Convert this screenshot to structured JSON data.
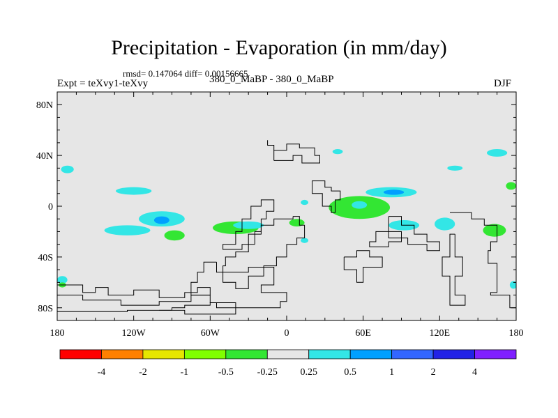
{
  "chart_data": {
    "type": "heatmap",
    "title": "Precipitation - Evaporation (in mm/day)",
    "stats": "rmsd= 0.147064 diff= 0.00156665",
    "left_label": "Expt = teXvy1-teXvy",
    "center_label": "380_0_MaBP - 380_0_MaBP",
    "right_label": "DJF",
    "x_range": [
      -180,
      180
    ],
    "y_range": [
      -90,
      90
    ],
    "x_ticks": [
      {
        "value": -180,
        "label": "180"
      },
      {
        "value": -120,
        "label": "120W"
      },
      {
        "value": -60,
        "label": "60W"
      },
      {
        "value": 0,
        "label": "0"
      },
      {
        "value": 60,
        "label": "60E"
      },
      {
        "value": 120,
        "label": "120E"
      },
      {
        "value": 180,
        "label": "180"
      }
    ],
    "y_ticks": [
      {
        "value": 80,
        "label": "80N"
      },
      {
        "value": 40,
        "label": "40N"
      },
      {
        "value": 0,
        "label": "0"
      },
      {
        "value": -40,
        "label": "40S"
      },
      {
        "value": -80,
        "label": "80S"
      }
    ],
    "colorbar": {
      "levels": [
        "-4",
        "-2",
        "-1",
        "-0.5",
        "-0.25",
        "0.25",
        "0.5",
        "1",
        "2",
        "4"
      ],
      "colors": [
        "#ff0000",
        "#ff8000",
        "#e6e600",
        "#80ff00",
        "#33e633",
        "#e6e6e6",
        "#33e6e6",
        "#00a0ff",
        "#3366ff",
        "#2222e6",
        "#8020ff"
      ]
    },
    "background_color": "#e6e6e6",
    "anomalies": [
      {
        "lon": -98,
        "lat": -10,
        "rx": 18,
        "ry": 6,
        "level": "0.25 to 0.5"
      },
      {
        "lon": -98,
        "lat": -11,
        "rx": 6,
        "ry": 3,
        "level": "0.5 to 1"
      },
      {
        "lon": -88,
        "lat": -23,
        "rx": 8,
        "ry": 4,
        "level": "-0.5 to -0.25"
      },
      {
        "lon": -125,
        "lat": -19,
        "rx": 18,
        "ry": 4,
        "level": "0.25 to 0.5"
      },
      {
        "lon": -120,
        "lat": 12,
        "rx": 14,
        "ry": 3,
        "level": "0.25 to 0.5"
      },
      {
        "lon": -40,
        "lat": -17,
        "rx": 18,
        "ry": 5,
        "level": "-0.5 to -0.25"
      },
      {
        "lon": -30,
        "lat": -15,
        "rx": 12,
        "ry": 3,
        "level": "0.25 to 0.5"
      },
      {
        "lon": 57,
        "lat": -1,
        "rx": 24,
        "ry": 9,
        "level": "-0.5 to -0.25"
      },
      {
        "lon": 57,
        "lat": 1,
        "rx": 6,
        "ry": 3,
        "level": "0.25 to 0.5"
      },
      {
        "lon": 82,
        "lat": 11,
        "rx": 20,
        "ry": 4,
        "level": "0.25 to 0.5"
      },
      {
        "lon": 84,
        "lat": 11,
        "rx": 8,
        "ry": 2,
        "level": "0.5 to 1"
      },
      {
        "lon": 92,
        "lat": -15,
        "rx": 12,
        "ry": 4,
        "level": "0.25 to 0.5"
      },
      {
        "lon": 124,
        "lat": -14,
        "rx": 8,
        "ry": 5,
        "level": "0.25 to 0.5"
      },
      {
        "lon": 163,
        "lat": -19,
        "rx": 9,
        "ry": 5,
        "level": "-0.5 to -0.25"
      },
      {
        "lon": 165,
        "lat": 42,
        "rx": 8,
        "ry": 3,
        "level": "0.25 to 0.5"
      },
      {
        "lon": 132,
        "lat": 30,
        "rx": 6,
        "ry": 2,
        "level": "0.25 to 0.5"
      },
      {
        "lon": -172,
        "lat": 29,
        "rx": 5,
        "ry": 3,
        "level": "0.25 to 0.5"
      },
      {
        "lon": -176,
        "lat": -58,
        "rx": 4,
        "ry": 3,
        "level": "0.25 to 0.5"
      },
      {
        "lon": -176,
        "lat": -62,
        "rx": 3,
        "ry": 2,
        "level": "-0.5 to -0.25"
      },
      {
        "lon": 178,
        "lat": -62,
        "rx": 3,
        "ry": 3,
        "level": "0.25 to 0.5"
      },
      {
        "lon": 176,
        "lat": 16,
        "rx": 4,
        "ry": 3,
        "level": "-0.5 to -0.25"
      },
      {
        "lon": 8,
        "lat": -13,
        "rx": 6,
        "ry": 3,
        "level": "-0.5 to -0.25"
      },
      {
        "lon": 14,
        "lat": -27,
        "rx": 3,
        "ry": 2,
        "level": "0.25 to 0.5"
      },
      {
        "lon": 40,
        "lat": 43,
        "rx": 4,
        "ry": 2,
        "level": "0.25 to 0.5"
      },
      {
        "lon": 14,
        "lat": 3,
        "rx": 3,
        "ry": 2,
        "level": "0.25 to 0.5"
      }
    ],
    "coastlines": [
      [
        [
          -10,
          36
        ],
        [
          -10,
          44
        ],
        [
          0,
          44
        ],
        [
          0,
          49
        ],
        [
          10,
          49
        ],
        [
          10,
          46
        ],
        [
          22,
          46
        ],
        [
          22,
          40
        ],
        [
          26,
          40
        ],
        [
          26,
          34
        ],
        [
          12,
          34
        ],
        [
          12,
          40
        ],
        [
          5,
          40
        ],
        [
          5,
          36
        ],
        [
          -10,
          36
        ]
      ],
      [
        [
          -25,
          -30
        ],
        [
          -25,
          -20
        ],
        [
          -20,
          -20
        ],
        [
          -20,
          -10
        ],
        [
          -16,
          -10
        ],
        [
          -16,
          -4
        ],
        [
          -10,
          -4
        ],
        [
          -10,
          5
        ],
        [
          -20,
          5
        ],
        [
          -20,
          0
        ],
        [
          -28,
          0
        ],
        [
          -28,
          -10
        ],
        [
          -35,
          -10
        ],
        [
          -35,
          -20
        ],
        [
          -40,
          -20
        ],
        [
          -40,
          -30
        ],
        [
          -50,
          -30
        ],
        [
          -50,
          -34
        ],
        [
          -35,
          -34
        ],
        [
          -35,
          -30
        ],
        [
          -25,
          -30
        ]
      ],
      [
        [
          20,
          15
        ],
        [
          20,
          10
        ],
        [
          28,
          10
        ],
        [
          28,
          0
        ],
        [
          35,
          0
        ],
        [
          35,
          -5
        ],
        [
          38,
          -5
        ],
        [
          38,
          5
        ],
        [
          42,
          5
        ],
        [
          42,
          12
        ],
        [
          35,
          12
        ],
        [
          35,
          15
        ],
        [
          30,
          15
        ],
        [
          30,
          20
        ],
        [
          20,
          20
        ],
        [
          20,
          15
        ]
      ],
      [
        [
          5,
          -8
        ],
        [
          10,
          -8
        ],
        [
          10,
          -15
        ],
        [
          14,
          -15
        ],
        [
          14,
          -25
        ],
        [
          8,
          -25
        ],
        [
          8,
          -30
        ],
        [
          0,
          -30
        ],
        [
          0,
          -40
        ],
        [
          -8,
          -40
        ],
        [
          -8,
          -47
        ],
        [
          -18,
          -47
        ],
        [
          -18,
          -55
        ],
        [
          -30,
          -55
        ],
        [
          -30,
          -65
        ],
        [
          -40,
          -65
        ],
        [
          -40,
          -60
        ],
        [
          -50,
          -60
        ],
        [
          -50,
          -47
        ],
        [
          -48,
          -47
        ],
        [
          -48,
          -40
        ],
        [
          -40,
          -40
        ],
        [
          -40,
          -36
        ],
        [
          -30,
          -36
        ],
        [
          -30,
          -22
        ],
        [
          -20,
          -22
        ],
        [
          -20,
          -15
        ],
        [
          -10,
          -15
        ],
        [
          -10,
          -10
        ],
        [
          5,
          -10
        ],
        [
          5,
          -8
        ]
      ],
      [
        [
          80,
          -8
        ],
        [
          90,
          -8
        ],
        [
          90,
          -15
        ],
        [
          100,
          -15
        ],
        [
          100,
          -22
        ],
        [
          110,
          -22
        ],
        [
          110,
          -28
        ],
        [
          120,
          -28
        ],
        [
          120,
          -35
        ],
        [
          110,
          -35
        ],
        [
          110,
          -30
        ],
        [
          95,
          -30
        ],
        [
          95,
          -25
        ],
        [
          80,
          -25
        ],
        [
          80,
          -20
        ],
        [
          70,
          -20
        ],
        [
          70,
          -28
        ],
        [
          65,
          -28
        ],
        [
          65,
          -32
        ],
        [
          80,
          -32
        ],
        [
          80,
          -28
        ],
        [
          90,
          -28
        ],
        [
          90,
          -20
        ],
        [
          80,
          -20
        ],
        [
          80,
          -8
        ]
      ],
      [
        [
          -55,
          -44
        ],
        [
          -55,
          -52
        ],
        [
          -30,
          -52
        ],
        [
          -30,
          -48
        ],
        [
          -10,
          -48
        ],
        [
          -10,
          -62
        ],
        [
          -20,
          -62
        ],
        [
          -20,
          -68
        ],
        [
          0,
          -68
        ],
        [
          0,
          -75
        ],
        [
          -5,
          -75
        ],
        [
          -5,
          -80
        ],
        [
          -55,
          -80
        ],
        [
          -55,
          -76
        ],
        [
          -60,
          -76
        ],
        [
          -60,
          -70
        ],
        [
          -75,
          -70
        ],
        [
          -75,
          -60
        ],
        [
          -70,
          -60
        ],
        [
          -70,
          -52
        ],
        [
          -65,
          -52
        ],
        [
          -65,
          -44
        ],
        [
          -55,
          -44
        ]
      ],
      [
        [
          -180,
          -62
        ],
        [
          -160,
          -62
        ],
        [
          -160,
          -68
        ],
        [
          -150,
          -68
        ],
        [
          -150,
          -64
        ],
        [
          -140,
          -64
        ],
        [
          -140,
          -70
        ],
        [
          -120,
          -70
        ],
        [
          -120,
          -66
        ],
        [
          -100,
          -66
        ],
        [
          -100,
          -72
        ],
        [
          -80,
          -72
        ],
        [
          -80,
          -68
        ],
        [
          -70,
          -68
        ],
        [
          -70,
          -64
        ],
        [
          -60,
          -64
        ],
        [
          -60,
          -70
        ],
        [
          -75,
          -70
        ],
        [
          -75,
          -75
        ],
        [
          -100,
          -75
        ],
        [
          -100,
          -78
        ],
        [
          -130,
          -78
        ],
        [
          -130,
          -74
        ],
        [
          -160,
          -74
        ],
        [
          -160,
          -70
        ],
        [
          -180,
          -70
        ]
      ],
      [
        [
          -100,
          -82
        ],
        [
          -90,
          -82
        ],
        [
          -90,
          -80
        ],
        [
          -80,
          -80
        ],
        [
          -80,
          -78
        ],
        [
          -60,
          -78
        ],
        [
          -60,
          -76
        ],
        [
          -40,
          -76
        ],
        [
          -40,
          -85
        ],
        [
          -80,
          -85
        ],
        [
          -80,
          -82
        ],
        [
          -100,
          -82
        ]
      ],
      [
        [
          45,
          -40
        ],
        [
          45,
          -50
        ],
        [
          55,
          -50
        ],
        [
          55,
          -60
        ],
        [
          60,
          -60
        ],
        [
          60,
          -48
        ],
        [
          75,
          -48
        ],
        [
          75,
          -40
        ],
        [
          65,
          -40
        ],
        [
          65,
          -35
        ],
        [
          55,
          -35
        ],
        [
          55,
          -40
        ],
        [
          45,
          -40
        ]
      ],
      [
        [
          128,
          -5
        ],
        [
          145,
          -5
        ],
        [
          145,
          -10
        ],
        [
          155,
          -10
        ],
        [
          155,
          -15
        ],
        [
          165,
          -15
        ],
        [
          165,
          -28
        ],
        [
          160,
          -28
        ],
        [
          160,
          -35
        ],
        [
          158,
          -35
        ],
        [
          158,
          -45
        ],
        [
          165,
          -45
        ],
        [
          165,
          -68
        ],
        [
          160,
          -68
        ],
        [
          160,
          -70
        ],
        [
          175,
          -70
        ],
        [
          175,
          -80
        ],
        [
          180,
          -80
        ]
      ],
      [
        [
          132,
          -22
        ],
        [
          132,
          -40
        ],
        [
          138,
          -40
        ],
        [
          138,
          -55
        ],
        [
          132,
          -55
        ],
        [
          132,
          -70
        ],
        [
          140,
          -70
        ],
        [
          140,
          -78
        ],
        [
          128,
          -78
        ],
        [
          128,
          -55
        ],
        [
          122,
          -55
        ],
        [
          122,
          -40
        ],
        [
          128,
          -40
        ],
        [
          128,
          -22
        ],
        [
          132,
          -22
        ]
      ],
      [
        [
          -180,
          -83
        ],
        [
          -125,
          -83
        ],
        [
          -125,
          -82
        ],
        [
          -90,
          -82
        ]
      ],
      [
        [
          -10,
          44
        ],
        [
          -10,
          48
        ],
        [
          -15,
          48
        ],
        [
          -15,
          52
        ]
      ]
    ]
  }
}
